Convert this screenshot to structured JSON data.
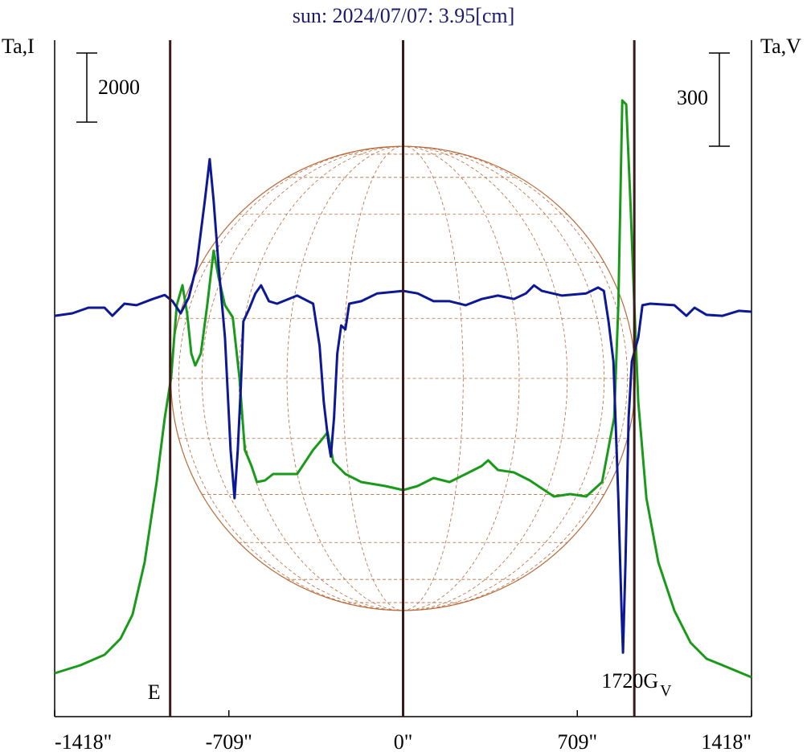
{
  "chart_data": {
    "type": "line",
    "title": "sun: 2024/07/07: 3.95[cm]",
    "y_label": "Ta,I",
    "y2_label": "Ta,V",
    "xlim": [
      -1418,
      1418
    ],
    "xticks": [
      {
        "value": -1418,
        "label": "-1418\""
      },
      {
        "value": -709,
        "label": "-709\""
      },
      {
        "value": 0,
        "label": "0\""
      },
      {
        "value": 709,
        "label": "709\""
      },
      {
        "value": 1418,
        "label": "1418\""
      }
    ],
    "ylim": [
      0,
      19585
    ],
    "y2lim": [
      -1290,
      887
    ],
    "disk_radius": 945,
    "vlines": [
      -948,
      0,
      941
    ],
    "scale_bars": [
      {
        "value": 2000,
        "axis": "y"
      },
      {
        "value": 300,
        "axis": "y2"
      }
    ],
    "annotations": [
      {
        "text": "E",
        "x": -948
      },
      {
        "text": "1720G",
        "x": 941
      },
      {
        "text": "V",
        "x": 941
      }
    ],
    "series": [
      {
        "color": "#1a9a1a",
        "axis": "y",
        "x": [
          -1418,
          -1313,
          -1215,
          -1150,
          -1101,
          -1052,
          -1003,
          -970,
          -944,
          -921,
          -898,
          -879,
          -862,
          -846,
          -823,
          -797,
          -771,
          -751,
          -725,
          -693,
          -666,
          -644,
          -617,
          -595,
          -562,
          -529,
          -431,
          -366,
          -333,
          -307,
          -284,
          -235,
          -170,
          -72,
          0,
          59,
          124,
          189,
          255,
          320,
          346,
          386,
          451,
          516,
          614,
          680,
          745,
          810,
          859,
          876,
          892,
          908,
          925,
          941,
          957,
          990,
          1039,
          1104,
          1170,
          1235,
          1300,
          1418
        ],
        "values": [
          1256,
          1489,
          1791,
          2256,
          2954,
          4466,
          6792,
          8653,
          9816,
          11909,
          12491,
          11677,
          10514,
          10165,
          10514,
          11909,
          13491,
          12723,
          11909,
          11560,
          9816,
          7722,
          7257,
          6792,
          6838,
          7025,
          7025,
          7722,
          8001,
          8234,
          7373,
          7025,
          6792,
          6676,
          6559,
          6676,
          6908,
          6792,
          7025,
          7257,
          7420,
          7141,
          7071,
          6838,
          6373,
          6443,
          6373,
          6792,
          8653,
          11909,
          17840,
          17724,
          14933,
          11909,
          9118,
          6327,
          4466,
          3070,
          2140,
          1675,
          1489,
          1140
        ]
      },
      {
        "color": "#0c1896",
        "axis": "y2",
        "x": [
          -1418,
          -1346,
          -1281,
          -1215,
          -1183,
          -1134,
          -1085,
          -1019,
          -970,
          -938,
          -905,
          -872,
          -840,
          -807,
          -787,
          -771,
          -751,
          -725,
          -702,
          -686,
          -673,
          -660,
          -650,
          -627,
          -601,
          -578,
          -546,
          -513,
          -431,
          -366,
          -340,
          -323,
          -304,
          -294,
          -281,
          -268,
          -252,
          -235,
          -219,
          -170,
          -105,
          0,
          59,
          124,
          189,
          255,
          320,
          386,
          451,
          500,
          533,
          565,
          647,
          745,
          794,
          817,
          836,
          856,
          876,
          889,
          895,
          905,
          918,
          931,
          957,
          974,
          1006,
          1104,
          1153,
          1186,
          1235,
          1300,
          1366,
          1418
        ],
        "values": [
          0,
          8,
          26,
          26,
          0,
          39,
          34,
          54,
          67,
          47,
          8,
          59,
          163,
          370,
          504,
          370,
          163,
          -70,
          -432,
          -587,
          -432,
          -225,
          -18,
          21,
          72,
          98,
          47,
          39,
          65,
          39,
          -96,
          -277,
          -406,
          -453,
          -328,
          -122,
          -31,
          -44,
          39,
          47,
          72,
          80,
          72,
          47,
          47,
          34,
          54,
          65,
          54,
          72,
          98,
          80,
          65,
          72,
          91,
          80,
          -18,
          -147,
          -587,
          -949,
          -1084,
          -794,
          -328,
          -147,
          -70,
          34,
          39,
          34,
          0,
          26,
          3,
          0,
          16,
          13
        ]
      }
    ]
  }
}
